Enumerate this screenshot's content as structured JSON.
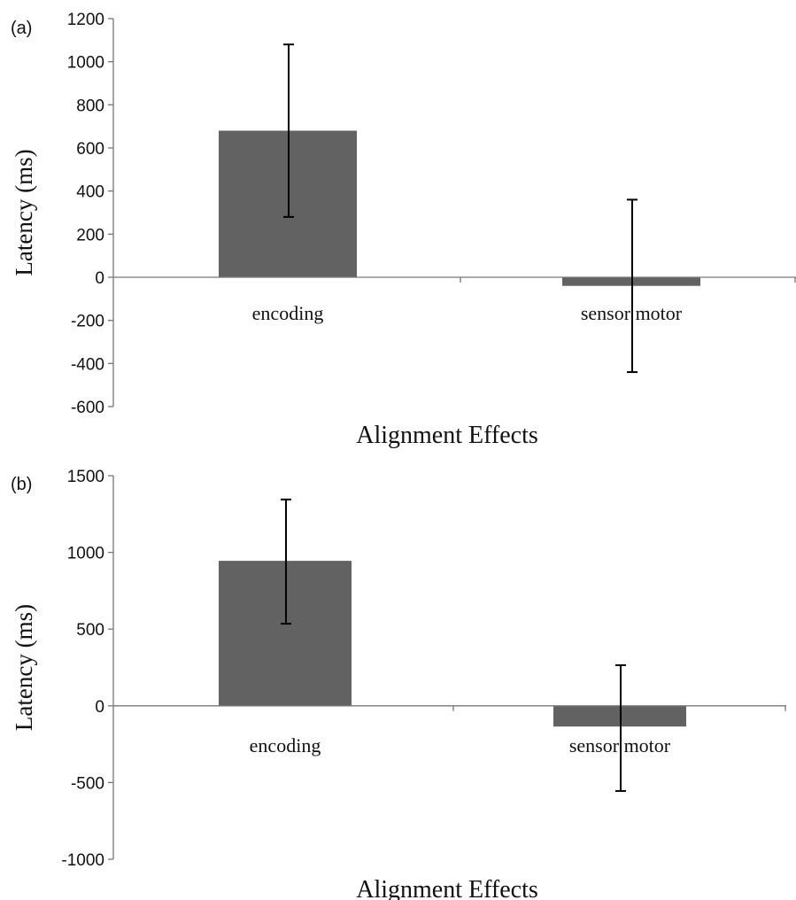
{
  "chart_data": [
    {
      "panel_label": "(a)",
      "type": "bar",
      "categories": [
        "encoding",
        "sensorimotor"
      ],
      "category_labels": [
        "encoding",
        "sensor motor"
      ],
      "values": [
        680,
        -40
      ],
      "error_bars": [
        [
          280,
          1080
        ],
        [
          -440,
          360
        ]
      ],
      "xlabel": "Alignment Effects",
      "ylabel": "Latency (ms)",
      "ylim": [
        -600,
        1200
      ],
      "yticks": [
        1200,
        1000,
        800,
        600,
        400,
        200,
        0,
        -200,
        -400,
        -600
      ],
      "ytick_labels": [
        "1200",
        "1000",
        "800",
        "600",
        "400",
        "200",
        "0",
        "-200",
        "-400",
        "-600"
      ],
      "bar_color": "#626262",
      "grid": false
    },
    {
      "panel_label": "(b)",
      "type": "bar",
      "categories": [
        "encoding",
        "sensorimotor"
      ],
      "category_labels": [
        "encoding",
        "sensor motor"
      ],
      "values": [
        945,
        -135
      ],
      "error_bars": [
        [
          535,
          1345
        ],
        [
          -555,
          265
        ]
      ],
      "xlabel": "Alignment Effects",
      "ylabel": "Latency (ms)",
      "ylim": [
        -1000,
        1500
      ],
      "yticks": [
        1500,
        1000,
        500,
        0,
        -500,
        -1000
      ],
      "ytick_labels": [
        "1500",
        "1000",
        "500",
        "0",
        "-500",
        "-1000"
      ],
      "bar_color": "#626262",
      "grid": false
    }
  ]
}
